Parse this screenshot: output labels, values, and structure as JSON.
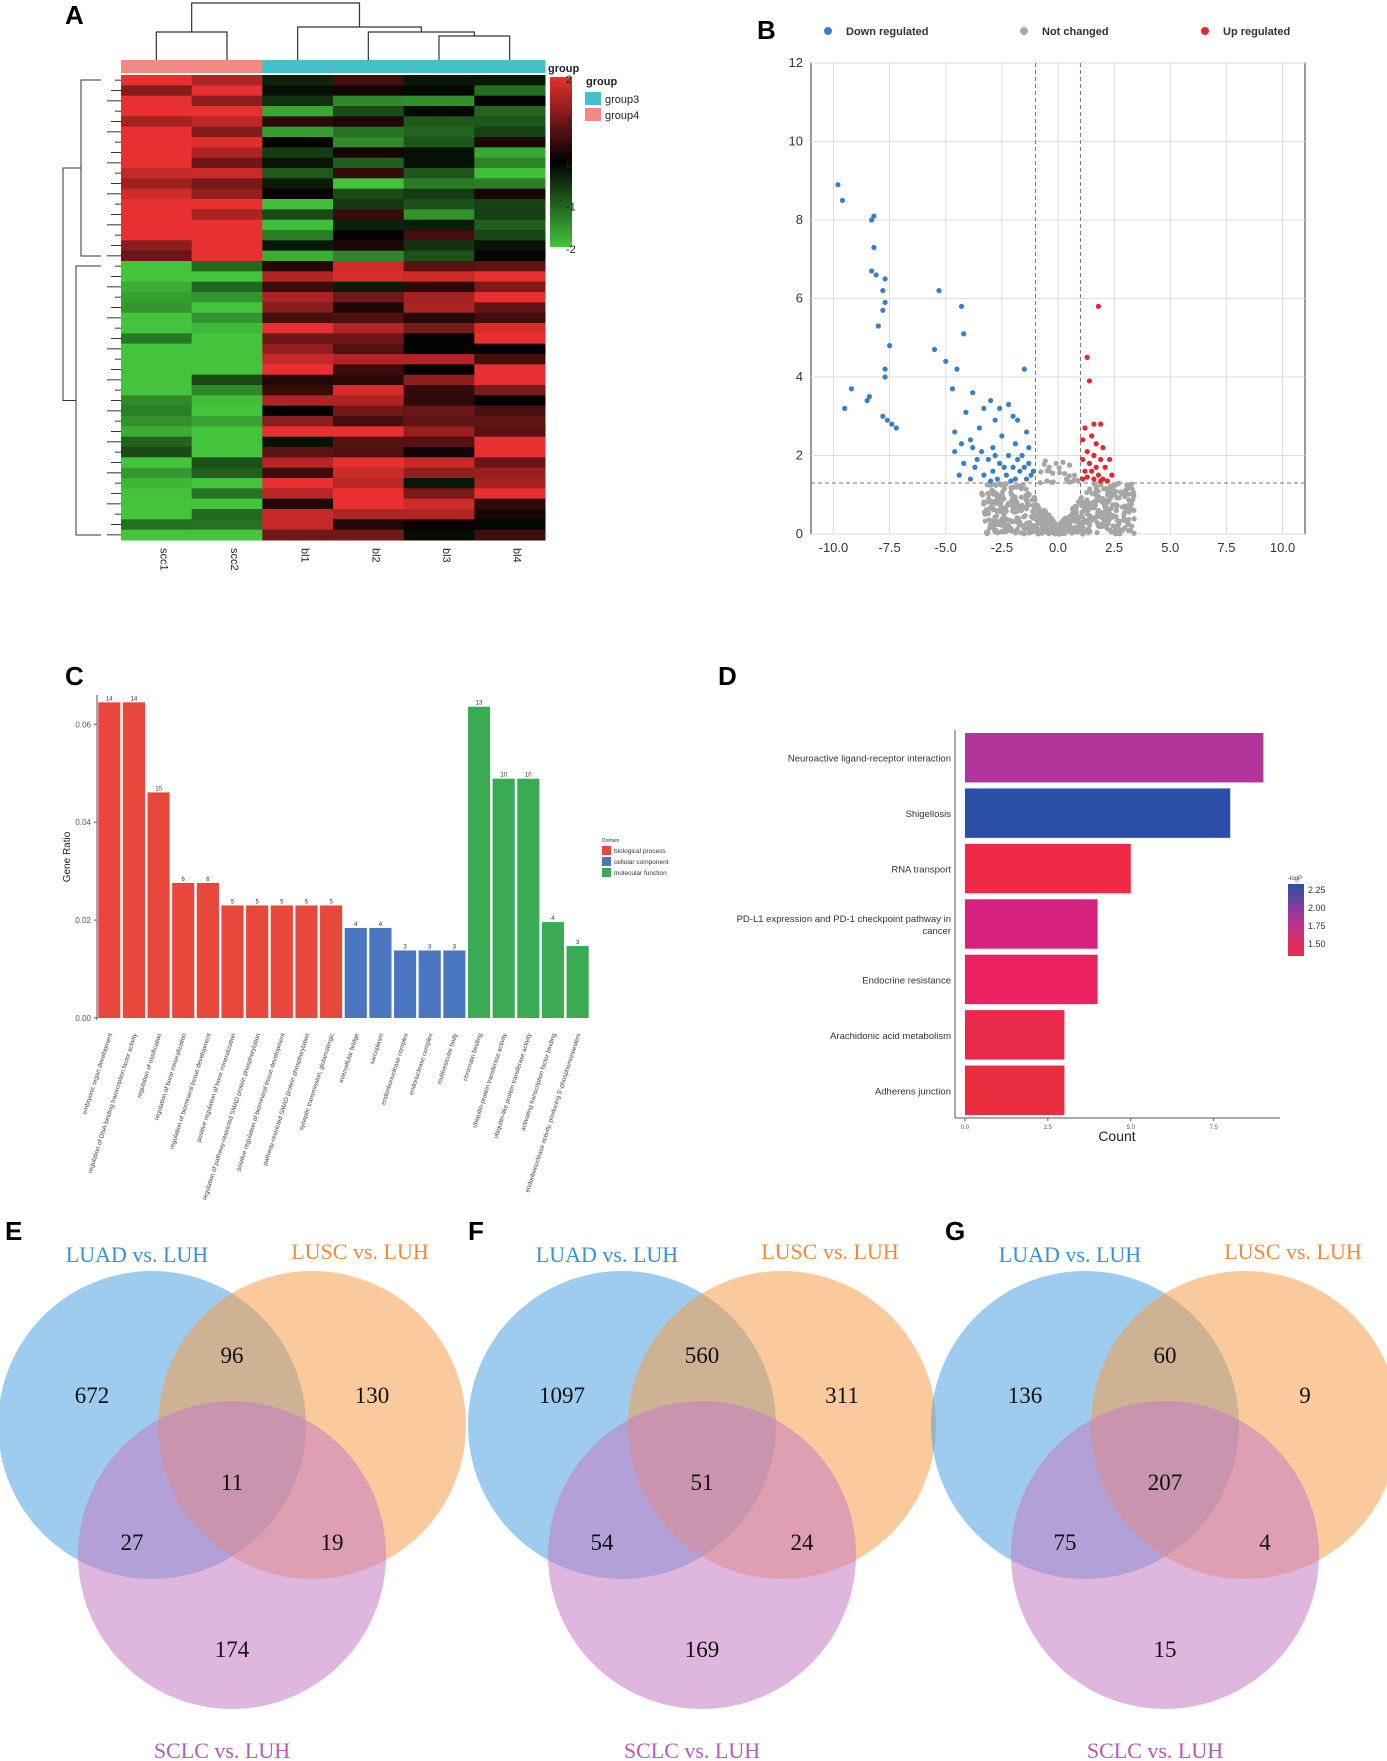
{
  "panels": {
    "A": "A",
    "B": "B",
    "C": "C",
    "D": "D",
    "E": "E",
    "F": "F",
    "G": "G"
  },
  "chart_data": [
    {
      "panel": "A",
      "type": "heatmap",
      "title": "",
      "samples": [
        "scc1",
        "scc2",
        "bl1",
        "bl2",
        "bl3",
        "bl4"
      ],
      "sample_groups": [
        "group4",
        "group4",
        "group3",
        "group3",
        "group3",
        "group3"
      ],
      "group_annotation_label": "group",
      "legend_title": "group",
      "legend_entries": [
        {
          "name": "group3",
          "color": "#44c1c8"
        },
        {
          "name": "group4",
          "color": "#f08a82"
        }
      ],
      "color_scale": {
        "min": -2,
        "max": 2,
        "ticks": [
          "2",
          "1",
          "0",
          "-1",
          "-2"
        ],
        "low_color": "#43c43c",
        "mid_color": "#000000",
        "high_color": "#e83030"
      },
      "clusters": [
        {
          "rows": 18,
          "scc": 2.0,
          "bl": -0.7
        },
        {
          "rows": 27,
          "scc": -2.0,
          "bl": 1.0
        }
      ]
    },
    {
      "panel": "B",
      "type": "scatter",
      "title": "",
      "xlabel": "",
      "ylabel": "",
      "xlim": [
        -11,
        11
      ],
      "ylim": [
        0,
        12
      ],
      "xticks": [
        "-10.0",
        "-7.5",
        "-5.0",
        "-2.5",
        "0.0",
        "2.5",
        "5.0",
        "7.5",
        "10.0"
      ],
      "yticks": [
        "0",
        "2",
        "4",
        "6",
        "8",
        "10",
        "12"
      ],
      "vlines": [
        -1,
        1
      ],
      "hline": 1.3,
      "legend": [
        {
          "name": "Down regulated",
          "color": "#3a7fc1"
        },
        {
          "name": "Not changed",
          "color": "#a6a6a6"
        },
        {
          "name": "Up regulated",
          "color": "#e3272d"
        }
      ],
      "series": [
        {
          "name": "Down regulated",
          "points": [
            [
              -9.8,
              8.9
            ],
            [
              -9.6,
              8.5
            ],
            [
              -8.2,
              8.1
            ],
            [
              -8.3,
              8.0
            ],
            [
              -8.2,
              7.3
            ],
            [
              -8.1,
              6.6
            ],
            [
              -8.3,
              6.7
            ],
            [
              -7.7,
              6.5
            ],
            [
              -7.8,
              6.2
            ],
            [
              -7.7,
              5.9
            ],
            [
              -7.8,
              5.7
            ],
            [
              -8.0,
              5.3
            ],
            [
              -7.5,
              4.8
            ],
            [
              -7.7,
              4.2
            ],
            [
              -7.7,
              4.0
            ],
            [
              -8.4,
              3.5
            ],
            [
              -8.5,
              3.4
            ],
            [
              -9.2,
              3.7
            ],
            [
              -9.5,
              3.2
            ],
            [
              -7.8,
              3.0
            ],
            [
              -7.6,
              2.9
            ],
            [
              -7.4,
              2.8
            ],
            [
              -7.2,
              2.7
            ],
            [
              -5.3,
              6.2
            ],
            [
              -4.3,
              5.8
            ],
            [
              -4.2,
              5.1
            ],
            [
              -5.5,
              4.7
            ],
            [
              -5.0,
              4.4
            ],
            [
              -4.5,
              4.2
            ],
            [
              -1.5,
              4.2
            ],
            [
              -4.7,
              3.7
            ],
            [
              -3.8,
              3.6
            ],
            [
              -3.0,
              3.4
            ],
            [
              -2.2,
              3.3
            ],
            [
              -2.6,
              3.2
            ],
            [
              -3.3,
              3.2
            ],
            [
              -4.1,
              3.1
            ],
            [
              -2.0,
              3.0
            ],
            [
              -1.8,
              2.9
            ],
            [
              -2.8,
              2.9
            ],
            [
              -3.5,
              2.7
            ],
            [
              -4.6,
              2.6
            ],
            [
              -1.4,
              2.6
            ],
            [
              -2.5,
              2.5
            ],
            [
              -3.9,
              2.4
            ],
            [
              -4.3,
              2.3
            ],
            [
              -1.9,
              2.3
            ],
            [
              -2.9,
              2.2
            ],
            [
              -3.4,
              2.1
            ],
            [
              -4.6,
              2.1
            ],
            [
              -2.2,
              2.0
            ],
            [
              -1.6,
              2.0
            ],
            [
              -3.1,
              1.9
            ],
            [
              -4.2,
              1.8
            ],
            [
              -2.6,
              1.8
            ],
            [
              -1.3,
              1.8
            ],
            [
              -3.7,
              1.7
            ],
            [
              -2.0,
              1.7
            ],
            [
              -2.9,
              1.6
            ],
            [
              -1.7,
              1.6
            ],
            [
              -4.4,
              1.5
            ],
            [
              -3.3,
              1.5
            ],
            [
              -2.3,
              1.5
            ],
            [
              -1.2,
              1.5
            ],
            [
              -3.9,
              1.4
            ],
            [
              -2.7,
              1.4
            ],
            [
              -1.9,
              1.4
            ],
            [
              -1.4,
              1.4
            ],
            [
              -3.0,
              1.35
            ],
            [
              -2.1,
              1.35
            ],
            [
              -1.1,
              1.6
            ],
            [
              -1.5,
              1.7
            ],
            [
              -2.4,
              1.7
            ],
            [
              -3.6,
              1.9
            ],
            [
              -1.8,
              1.9
            ],
            [
              -2.8,
              2.0
            ],
            [
              -3.8,
              2.2
            ],
            [
              -1.3,
              2.2
            ]
          ]
        },
        {
          "name": "Up regulated",
          "points": [
            [
              1.8,
              5.8
            ],
            [
              1.3,
              4.5
            ],
            [
              1.4,
              3.9
            ],
            [
              1.6,
              2.8
            ],
            [
              1.9,
              2.8
            ],
            [
              1.2,
              2.7
            ],
            [
              1.5,
              2.5
            ],
            [
              1.1,
              2.4
            ],
            [
              1.7,
              2.3
            ],
            [
              2.0,
              2.2
            ],
            [
              1.3,
              2.1
            ],
            [
              1.6,
              2.0
            ],
            [
              1.9,
              1.9
            ],
            [
              1.1,
              1.9
            ],
            [
              2.3,
              1.9
            ],
            [
              1.4,
              1.8
            ],
            [
              1.7,
              1.7
            ],
            [
              2.1,
              1.7
            ],
            [
              1.2,
              1.6
            ],
            [
              1.5,
              1.6
            ],
            [
              1.8,
              1.5
            ],
            [
              2.4,
              1.5
            ],
            [
              1.3,
              1.45
            ],
            [
              1.6,
              1.4
            ],
            [
              2.0,
              1.4
            ],
            [
              1.1,
              1.4
            ],
            [
              1.9,
              1.35
            ],
            [
              2.2,
              1.35
            ]
          ]
        },
        {
          "name": "Not changed",
          "note": "dense grey points near x=0, y<1.3 (plus a few grey points with |x|<1 above 1.3)"
        }
      ]
    },
    {
      "panel": "C",
      "type": "bar",
      "title": "",
      "ylabel": "Gene Ratio",
      "ylim": [
        0,
        0.066
      ],
      "yticks": [
        "0.00",
        "0.02",
        "0.04",
        "0.06"
      ],
      "legend_title": "Domain",
      "legend_entries": [
        {
          "name": "biological process",
          "color": "#e8473c"
        },
        {
          "name": "cellular component",
          "color": "#4a77bf"
        },
        {
          "name": "molecular function",
          "color": "#3aaa55"
        }
      ],
      "categories": [
        "embryonic organ development",
        "regulation of DNA-binding transcription factor activity",
        "regulation of ossification",
        "regulation of bone mineralization",
        "regulation of biomineral tissue development",
        "positive regulation of bone mineralization",
        "regulation of pathway-restricted SMAD protein phosphorylation",
        "positive regulation of biomineral tissue development",
        "pathway-restricted SMAD protein phosphorylation",
        "synaptic transmission, glutamatergic",
        "intercellular bridge",
        "sarcoplasm",
        "endoribonuclease complex",
        "endonuclease complex",
        "multivesicular body",
        "chromatin binding",
        "ubiquitin-protein transferase activity",
        "ubiquitin-like protein transferase activity",
        "activating transcription factor binding",
        "endoribonuclease activity, producing 5'-phosphomonoesters"
      ],
      "values": [
        0.0645,
        0.0645,
        0.0461,
        0.0276,
        0.0276,
        0.023,
        0.023,
        0.023,
        0.023,
        0.023,
        0.0184,
        0.0184,
        0.0138,
        0.0138,
        0.0138,
        0.0636,
        0.0489,
        0.0489,
        0.0196,
        0.0147
      ],
      "data_labels": [
        "14",
        "14",
        "10",
        "6",
        "6",
        "5",
        "5",
        "5",
        "5",
        "5",
        "4",
        "4",
        "3",
        "3",
        "3",
        "13",
        "10",
        "10",
        "4",
        "3"
      ],
      "domains": [
        "BP",
        "BP",
        "BP",
        "BP",
        "BP",
        "BP",
        "BP",
        "BP",
        "BP",
        "BP",
        "CC",
        "CC",
        "CC",
        "CC",
        "CC",
        "MF",
        "MF",
        "MF",
        "MF",
        "MF"
      ]
    },
    {
      "panel": "D",
      "type": "bar",
      "orientation": "horizontal",
      "title": "",
      "xlabel": "Count",
      "xlim": [
        -0.3,
        9.5
      ],
      "xticks": [
        "0.0",
        "2.5",
        "5.0",
        "7.5"
      ],
      "categories": [
        "Neuroactive ligand-receptor interaction",
        "Shigellosis",
        "RNA transport",
        "PD-L1 expression and PD-1 checkpoint pathway in cancer",
        "Endocrine resistance",
        "Arachidonic acid metabolism",
        "Adherens junction"
      ],
      "values": [
        9,
        8,
        5,
        4,
        4,
        3,
        3
      ],
      "colors": [
        "#b23399",
        "#2b4fa6",
        "#ee2a47",
        "#d7217e",
        "#ea2061",
        "#ea2a4b",
        "#ea2d3e"
      ],
      "color_legend_title": "-logP",
      "color_legend_ticks": [
        "2.25",
        "2.00",
        "1.75",
        "1.50"
      ]
    },
    {
      "panel": "E",
      "type": "venn",
      "sets": [
        {
          "name": "LUAD vs. LUH",
          "color": "#4da3e0"
        },
        {
          "name": "LUSC vs. LUH",
          "color": "#f59c4a"
        },
        {
          "name": "SCLC vs. LUH",
          "color": "#c47cc2"
        }
      ],
      "regions": {
        "luad_only": "672",
        "lusc_only": "130",
        "sclc_only": "174",
        "luad_lusc": "96",
        "luad_sclc": "27",
        "lusc_sclc": "19",
        "all": "11"
      }
    },
    {
      "panel": "F",
      "type": "venn",
      "sets": [
        {
          "name": "LUAD vs. LUH",
          "color": "#4da3e0"
        },
        {
          "name": "LUSC vs. LUH",
          "color": "#f59c4a"
        },
        {
          "name": "SCLC vs. LUH",
          "color": "#c47cc2"
        }
      ],
      "regions": {
        "luad_only": "1097",
        "lusc_only": "311",
        "sclc_only": "169",
        "luad_lusc": "560",
        "luad_sclc": "54",
        "lusc_sclc": "24",
        "all": "51"
      }
    },
    {
      "panel": "G",
      "type": "venn",
      "sets": [
        {
          "name": "LUAD vs. LUH",
          "color": "#4da3e0"
        },
        {
          "name": "LUSC vs. LUH",
          "color": "#f59c4a"
        },
        {
          "name": "SCLC vs. LUH",
          "color": "#c47cc2"
        }
      ],
      "regions": {
        "luad_only": "136",
        "lusc_only": "9",
        "sclc_only": "15",
        "luad_lusc": "60",
        "luad_sclc": "75",
        "lusc_sclc": "4",
        "all": "207"
      }
    }
  ]
}
